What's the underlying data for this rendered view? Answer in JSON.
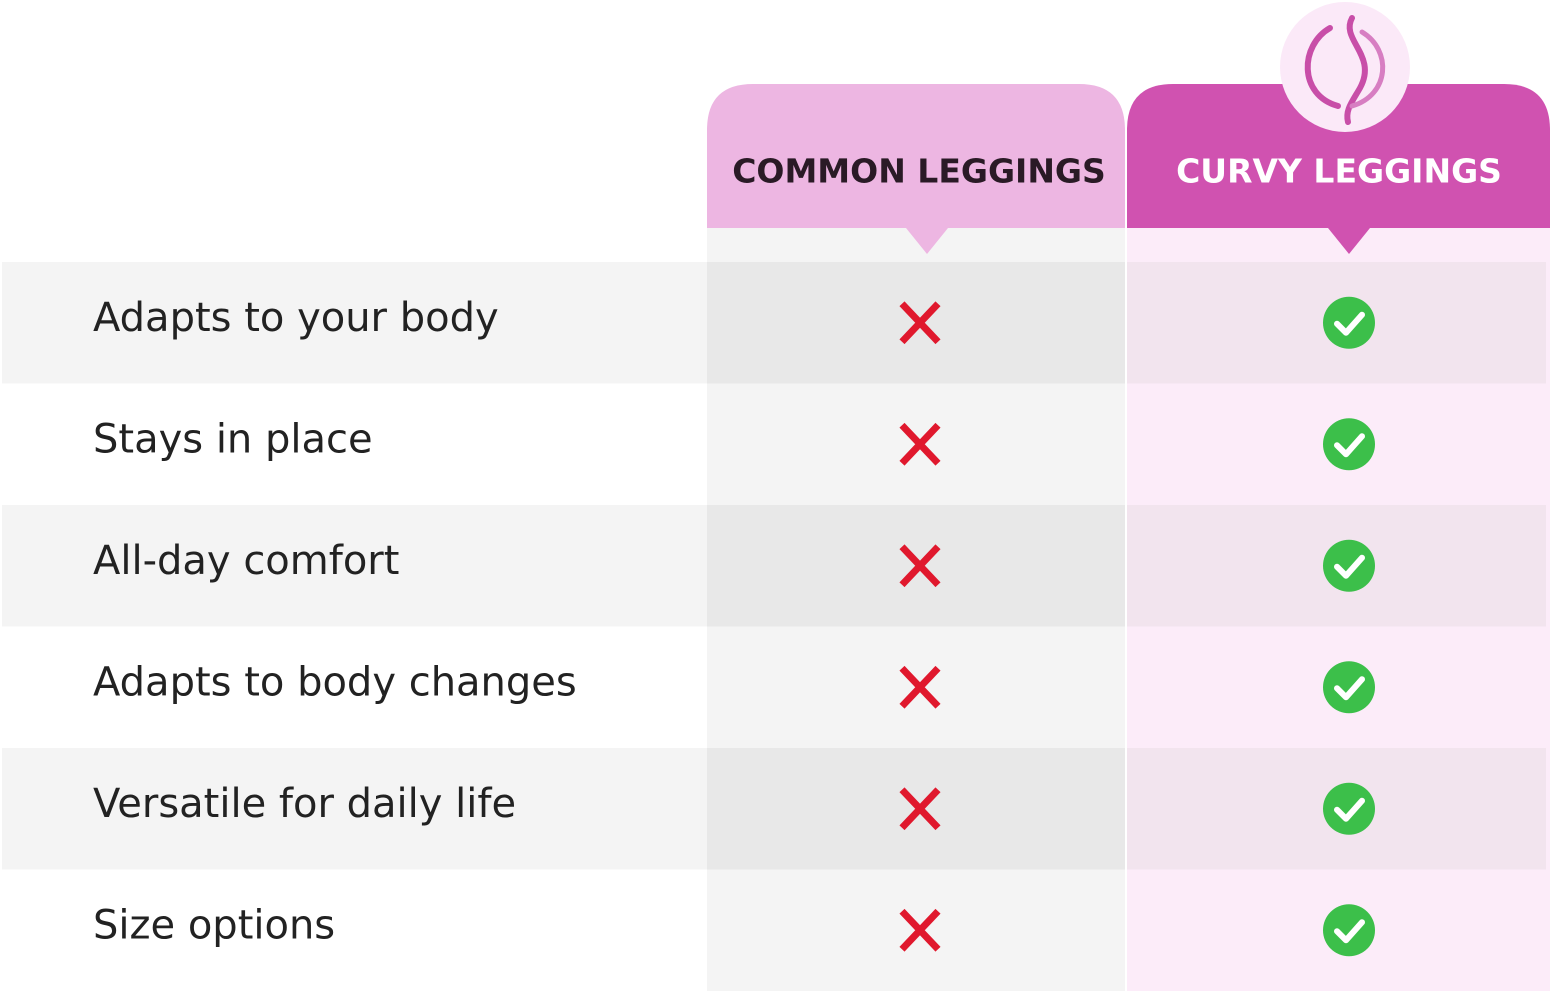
{
  "header": {
    "columns": [
      "COMMON LEGGINGS",
      "CURVY LEGGINGS"
    ]
  },
  "rows": [
    "Adapts to your body",
    "Stays in place",
    "All-day comfort",
    "Adapts to body changes",
    "Versatile for daily life",
    "Size options"
  ]
}
